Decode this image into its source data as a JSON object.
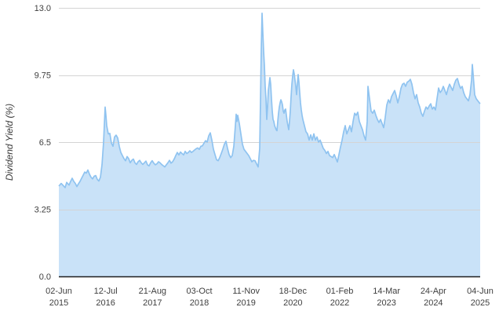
{
  "chart_data": {
    "type": "area",
    "title": "",
    "ylabel": "Dividend Yield (%)",
    "ylim": [
      0,
      13
    ],
    "grid": "horizontal",
    "legend": "none",
    "series_name": "Dividend Yield (%)",
    "y_ticks": [
      {
        "value": 13.0,
        "label": "13.0"
      },
      {
        "value": 9.75,
        "label": "9.75"
      },
      {
        "value": 6.5,
        "label": "6.5"
      },
      {
        "value": 3.25,
        "label": "3.25"
      },
      {
        "value": 0.0,
        "label": "0.0"
      }
    ],
    "x_ticks": [
      {
        "date": "02-Jun",
        "year": "2015"
      },
      {
        "date": "12-Jul",
        "year": "2016"
      },
      {
        "date": "21-Aug",
        "year": "2017"
      },
      {
        "date": "03-Oct",
        "year": "2018"
      },
      {
        "date": "11-Nov",
        "year": "2019"
      },
      {
        "date": "18-Dec",
        "year": "2020"
      },
      {
        "date": "01-Feb",
        "year": "2022"
      },
      {
        "date": "14-Mar",
        "year": "2023"
      },
      {
        "date": "24-Apr",
        "year": "2024"
      },
      {
        "date": "04-Jun",
        "year": "2025"
      }
    ],
    "x_note": "points x = position 0..537 along time axis from 02-Jun-2015 to 04-Jun-2025, y = dividend yield %",
    "points": [
      [
        0,
        4.37
      ],
      [
        3,
        4.5
      ],
      [
        5,
        4.42
      ],
      [
        8,
        4.3
      ],
      [
        10,
        4.55
      ],
      [
        13,
        4.42
      ],
      [
        15,
        4.6
      ],
      [
        17,
        4.75
      ],
      [
        19,
        4.6
      ],
      [
        21,
        4.5
      ],
      [
        23,
        4.35
      ],
      [
        25,
        4.48
      ],
      [
        27,
        4.6
      ],
      [
        29,
        4.75
      ],
      [
        31,
        4.9
      ],
      [
        33,
        5.05
      ],
      [
        35,
        5.0
      ],
      [
        37,
        5.15
      ],
      [
        39,
        4.95
      ],
      [
        41,
        4.8
      ],
      [
        43,
        4.72
      ],
      [
        45,
        4.85
      ],
      [
        47,
        4.88
      ],
      [
        49,
        4.7
      ],
      [
        51,
        4.62
      ],
      [
        53,
        4.8
      ],
      [
        55,
        5.4
      ],
      [
        57,
        6.5
      ],
      [
        59,
        8.2
      ],
      [
        60,
        7.8
      ],
      [
        61,
        7.3
      ],
      [
        63,
        6.9
      ],
      [
        65,
        6.92
      ],
      [
        67,
        6.45
      ],
      [
        69,
        6.3
      ],
      [
        71,
        6.75
      ],
      [
        73,
        6.84
      ],
      [
        75,
        6.7
      ],
      [
        77,
        6.3
      ],
      [
        79,
        6.0
      ],
      [
        81,
        5.85
      ],
      [
        83,
        5.7
      ],
      [
        85,
        5.6
      ],
      [
        87,
        5.8
      ],
      [
        89,
        5.7
      ],
      [
        91,
        5.5
      ],
      [
        93,
        5.62
      ],
      [
        95,
        5.68
      ],
      [
        97,
        5.5
      ],
      [
        99,
        5.42
      ],
      [
        101,
        5.55
      ],
      [
        103,
        5.62
      ],
      [
        105,
        5.5
      ],
      [
        107,
        5.42
      ],
      [
        109,
        5.5
      ],
      [
        111,
        5.58
      ],
      [
        113,
        5.4
      ],
      [
        115,
        5.35
      ],
      [
        117,
        5.5
      ],
      [
        119,
        5.6
      ],
      [
        121,
        5.48
      ],
      [
        123,
        5.4
      ],
      [
        125,
        5.45
      ],
      [
        127,
        5.55
      ],
      [
        129,
        5.5
      ],
      [
        131,
        5.42
      ],
      [
        133,
        5.36
      ],
      [
        135,
        5.3
      ],
      [
        137,
        5.4
      ],
      [
        139,
        5.5
      ],
      [
        141,
        5.62
      ],
      [
        143,
        5.48
      ],
      [
        145,
        5.55
      ],
      [
        147,
        5.68
      ],
      [
        149,
        5.85
      ],
      [
        151,
        6.0
      ],
      [
        153,
        5.88
      ],
      [
        155,
        6.02
      ],
      [
        157,
        5.95
      ],
      [
        159,
        5.88
      ],
      [
        161,
        6.05
      ],
      [
        163,
        5.95
      ],
      [
        165,
        6.0
      ],
      [
        167,
        6.08
      ],
      [
        169,
        6.0
      ],
      [
        171,
        6.05
      ],
      [
        173,
        6.12
      ],
      [
        175,
        6.18
      ],
      [
        177,
        6.22
      ],
      [
        179,
        6.15
      ],
      [
        181,
        6.3
      ],
      [
        183,
        6.32
      ],
      [
        185,
        6.45
      ],
      [
        187,
        6.57
      ],
      [
        189,
        6.5
      ],
      [
        191,
        6.8
      ],
      [
        193,
        6.95
      ],
      [
        195,
        6.6
      ],
      [
        197,
        6.16
      ],
      [
        199,
        5.9
      ],
      [
        201,
        5.65
      ],
      [
        203,
        5.6
      ],
      [
        205,
        5.75
      ],
      [
        207,
        5.95
      ],
      [
        209,
        6.16
      ],
      [
        211,
        6.4
      ],
      [
        213,
        6.54
      ],
      [
        215,
        6.2
      ],
      [
        217,
        5.9
      ],
      [
        219,
        5.75
      ],
      [
        221,
        5.85
      ],
      [
        223,
        6.3
      ],
      [
        225,
        7.3
      ],
      [
        226,
        7.85
      ],
      [
        227,
        7.5
      ],
      [
        228,
        7.8
      ],
      [
        230,
        7.4
      ],
      [
        232,
        6.9
      ],
      [
        234,
        6.4
      ],
      [
        236,
        6.15
      ],
      [
        238,
        6.05
      ],
      [
        240,
        5.95
      ],
      [
        242,
        5.85
      ],
      [
        244,
        5.7
      ],
      [
        246,
        5.55
      ],
      [
        248,
        5.62
      ],
      [
        250,
        5.6
      ],
      [
        252,
        5.45
      ],
      [
        254,
        5.3
      ],
      [
        256,
        6.2
      ],
      [
        257,
        8.5
      ],
      [
        258,
        11.0
      ],
      [
        259,
        12.74
      ],
      [
        260,
        11.8
      ],
      [
        261,
        10.9
      ],
      [
        262,
        10.2
      ],
      [
        263,
        9.2
      ],
      [
        264,
        8.6
      ],
      [
        265,
        7.6
      ],
      [
        266,
        8.2
      ],
      [
        267,
        9.0
      ],
      [
        268,
        9.3
      ],
      [
        269,
        9.62
      ],
      [
        270,
        9.3
      ],
      [
        271,
        8.6
      ],
      [
        272,
        8.0
      ],
      [
        273,
        7.6
      ],
      [
        274,
        7.5
      ],
      [
        275,
        7.3
      ],
      [
        277,
        7.1
      ],
      [
        278,
        7.05
      ],
      [
        279,
        7.5
      ],
      [
        280,
        7.9
      ],
      [
        281,
        8.2
      ],
      [
        282,
        8.4
      ],
      [
        283,
        8.55
      ],
      [
        284,
        8.45
      ],
      [
        285,
        8.3
      ],
      [
        286,
        8.0
      ],
      [
        287,
        7.9
      ],
      [
        288,
        8.05
      ],
      [
        289,
        8.1
      ],
      [
        290,
        7.8
      ],
      [
        291,
        7.5
      ],
      [
        292,
        7.3
      ],
      [
        293,
        7.1
      ],
      [
        294,
        7.5
      ],
      [
        295,
        8.0
      ],
      [
        296,
        8.7
      ],
      [
        297,
        9.3
      ],
      [
        298,
        9.7
      ],
      [
        299,
        10.0
      ],
      [
        300,
        9.8
      ],
      [
        301,
        9.5
      ],
      [
        302,
        9.2
      ],
      [
        303,
        8.8
      ],
      [
        304,
        9.3
      ],
      [
        305,
        9.77
      ],
      [
        306,
        9.4
      ],
      [
        307,
        8.9
      ],
      [
        308,
        8.4
      ],
      [
        309,
        8.06
      ],
      [
        310,
        7.8
      ],
      [
        311,
        7.6
      ],
      [
        312,
        7.45
      ],
      [
        313,
        7.3
      ],
      [
        315,
        7.0
      ],
      [
        317,
        6.9
      ],
      [
        319,
        6.6
      ],
      [
        321,
        6.85
      ],
      [
        323,
        6.6
      ],
      [
        325,
        6.9
      ],
      [
        327,
        6.6
      ],
      [
        329,
        6.75
      ],
      [
        331,
        6.5
      ],
      [
        333,
        6.6
      ],
      [
        335,
        6.4
      ],
      [
        337,
        6.2
      ],
      [
        339,
        6.1
      ],
      [
        341,
        5.95
      ],
      [
        343,
        6.05
      ],
      [
        345,
        5.85
      ],
      [
        347,
        5.8
      ],
      [
        349,
        5.75
      ],
      [
        351,
        5.9
      ],
      [
        353,
        5.73
      ],
      [
        355,
        5.54
      ],
      [
        357,
        5.9
      ],
      [
        359,
        6.27
      ],
      [
        361,
        6.6
      ],
      [
        363,
        7.0
      ],
      [
        365,
        7.3
      ],
      [
        367,
        6.9
      ],
      [
        369,
        7.1
      ],
      [
        371,
        7.3
      ],
      [
        373,
        7.0
      ],
      [
        375,
        7.5
      ],
      [
        377,
        7.9
      ],
      [
        379,
        7.8
      ],
      [
        381,
        7.95
      ],
      [
        383,
        7.5
      ],
      [
        385,
        7.3
      ],
      [
        387,
        7.1
      ],
      [
        389,
        6.8
      ],
      [
        391,
        6.6
      ],
      [
        393,
        7.5
      ],
      [
        394,
        9.2
      ],
      [
        396,
        8.6
      ],
      [
        398,
        8.0
      ],
      [
        400,
        7.9
      ],
      [
        402,
        8.05
      ],
      [
        404,
        7.8
      ],
      [
        406,
        7.6
      ],
      [
        408,
        7.45
      ],
      [
        410,
        7.6
      ],
      [
        412,
        7.4
      ],
      [
        414,
        7.2
      ],
      [
        416,
        7.7
      ],
      [
        418,
        8.3
      ],
      [
        420,
        8.55
      ],
      [
        422,
        8.4
      ],
      [
        424,
        8.7
      ],
      [
        426,
        8.85
      ],
      [
        428,
        9.0
      ],
      [
        430,
        8.74
      ],
      [
        432,
        8.4
      ],
      [
        434,
        8.7
      ],
      [
        436,
        9.1
      ],
      [
        438,
        9.3
      ],
      [
        440,
        9.35
      ],
      [
        442,
        9.2
      ],
      [
        444,
        9.4
      ],
      [
        446,
        9.45
      ],
      [
        448,
        9.54
      ],
      [
        450,
        9.3
      ],
      [
        452,
        8.9
      ],
      [
        454,
        8.6
      ],
      [
        456,
        8.8
      ],
      [
        458,
        8.4
      ],
      [
        460,
        8.2
      ],
      [
        462,
        7.9
      ],
      [
        464,
        7.75
      ],
      [
        466,
        8.0
      ],
      [
        468,
        8.2
      ],
      [
        470,
        8.1
      ],
      [
        472,
        8.25
      ],
      [
        474,
        8.36
      ],
      [
        476,
        8.1
      ],
      [
        478,
        8.2
      ],
      [
        480,
        8.06
      ],
      [
        482,
        8.6
      ],
      [
        484,
        9.12
      ],
      [
        486,
        8.9
      ],
      [
        488,
        9.0
      ],
      [
        490,
        9.2
      ],
      [
        492,
        9.0
      ],
      [
        494,
        8.8
      ],
      [
        496,
        9.1
      ],
      [
        498,
        9.3
      ],
      [
        500,
        9.15
      ],
      [
        502,
        9.0
      ],
      [
        504,
        9.3
      ],
      [
        506,
        9.5
      ],
      [
        508,
        9.58
      ],
      [
        510,
        9.3
      ],
      [
        512,
        9.1
      ],
      [
        514,
        9.2
      ],
      [
        516,
        8.9
      ],
      [
        518,
        8.7
      ],
      [
        520,
        8.6
      ],
      [
        522,
        8.5
      ],
      [
        524,
        8.8
      ],
      [
        526,
        9.5
      ],
      [
        527,
        10.26
      ],
      [
        528,
        9.8
      ],
      [
        530,
        8.8
      ],
      [
        532,
        8.6
      ],
      [
        534,
        8.5
      ],
      [
        536,
        8.4
      ],
      [
        537,
        8.36
      ]
    ]
  },
  "colors": {
    "background": "#FFFFFF",
    "area_fill": "#C9E2F8",
    "line": "#8FC3F0",
    "gridline": "#D4D4D4",
    "axis_line": "#1F1F1F",
    "tick_text": "#3F3F3F",
    "axis_title_text": "#3A3A3A"
  }
}
